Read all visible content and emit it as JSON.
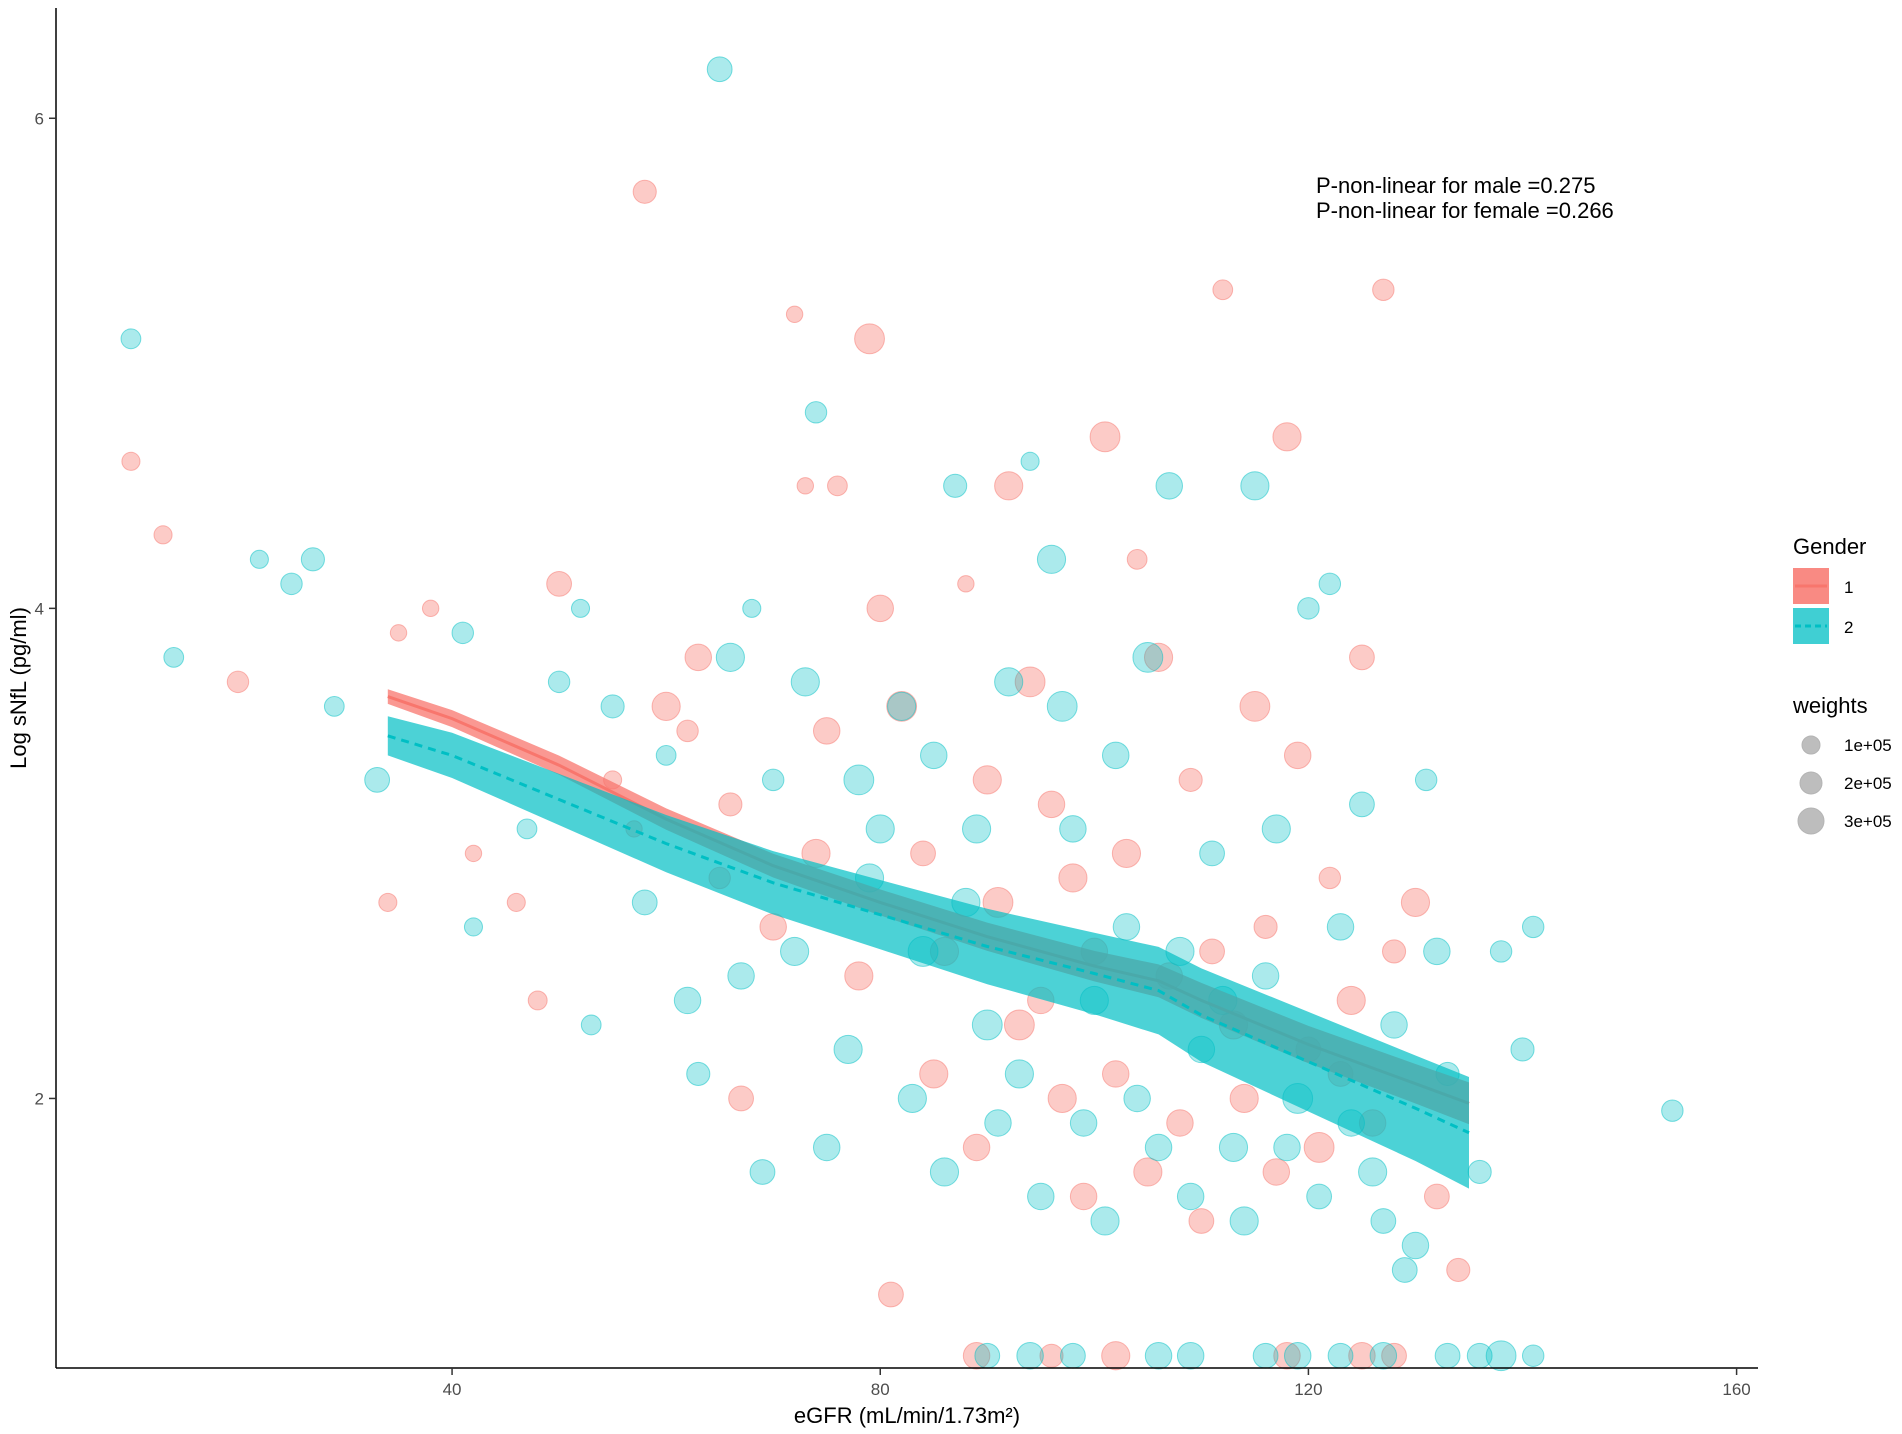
{
  "chart_data": {
    "type": "scatter",
    "title": "",
    "xlabel": "eGFR (mL/min/1.73m²)",
    "ylabel": "Log sNfL (pg/ml)",
    "xlim": [
      3,
      162
    ],
    "ylim": [
      0.9,
      6.45
    ],
    "x_ticks": [
      40,
      80,
      120,
      160
    ],
    "y_ticks": [
      2,
      4,
      6
    ],
    "grid": false,
    "annotations": [
      "P-non-linear for male =0.275",
      "P-non-linear for female =0.266"
    ],
    "legend": {
      "placement": "right",
      "color_title": "Gender",
      "color_entries": [
        {
          "label": "1",
          "color": "#F8766D"
        },
        {
          "label": "2",
          "color": "#00BFC4"
        }
      ],
      "size_title": "weights",
      "size_entries": [
        {
          "label": "1e+05",
          "value": 100000
        },
        {
          "label": "2e+05",
          "value": 200000
        },
        {
          "label": "3e+05",
          "value": 300000
        }
      ]
    },
    "series": [
      {
        "name": "1",
        "color": "#F8766D",
        "fit_x": [
          34,
          40,
          50,
          60,
          70,
          80,
          90,
          100,
          106,
          110,
          120,
          130,
          135
        ],
        "fit_y": [
          3.64,
          3.55,
          3.36,
          3.14,
          2.95,
          2.8,
          2.66,
          2.54,
          2.48,
          2.4,
          2.22,
          2.06,
          1.98
        ],
        "fit_band": 0.06,
        "points": [
          [
            10,
            4.6,
            1.2
          ],
          [
            13,
            4.3,
            1.2
          ],
          [
            20,
            3.7,
            1.6
          ],
          [
            34,
            2.8,
            1.2
          ],
          [
            35,
            3.9,
            1.0
          ],
          [
            38,
            4.0,
            1.0
          ],
          [
            42,
            3.0,
            1.0
          ],
          [
            46,
            2.8,
            1.2
          ],
          [
            48,
            2.4,
            1.3
          ],
          [
            50,
            4.1,
            2.0
          ],
          [
            55,
            3.3,
            1.2
          ],
          [
            57,
            3.1,
            1.0
          ],
          [
            58,
            5.7,
            1.8
          ],
          [
            60,
            3.6,
            2.4
          ],
          [
            62,
            3.5,
            1.6
          ],
          [
            63,
            3.8,
            2.2
          ],
          [
            65,
            2.9,
            1.6
          ],
          [
            67,
            2.0,
            2.0
          ],
          [
            72,
            5.2,
            1.0
          ],
          [
            73,
            4.5,
            1.0
          ],
          [
            75,
            3.5,
            2.2
          ],
          [
            76,
            4.5,
            1.4
          ],
          [
            79,
            5.1,
            2.6
          ],
          [
            80,
            4.0,
            2.2
          ],
          [
            81,
            1.2,
            2.0
          ],
          [
            84,
            3.0,
            2.0
          ],
          [
            86,
            2.6,
            2.4
          ],
          [
            88,
            4.1,
            1.0
          ],
          [
            90,
            3.3,
            2.4
          ],
          [
            92,
            4.5,
            2.4
          ],
          [
            94,
            3.7,
            2.6
          ],
          [
            96,
            3.2,
            2.2
          ],
          [
            98,
            2.9,
            2.4
          ],
          [
            100,
            2.6,
            2.2
          ],
          [
            101,
            4.7,
            2.6
          ],
          [
            103,
            3.0,
            2.4
          ],
          [
            104,
            4.2,
            1.4
          ],
          [
            106,
            3.8,
            2.4
          ],
          [
            107,
            2.5,
            2.2
          ],
          [
            109,
            3.3,
            1.8
          ],
          [
            111,
            2.6,
            2.0
          ],
          [
            112,
            5.3,
            1.4
          ],
          [
            113,
            2.3,
            2.4
          ],
          [
            115,
            3.6,
            2.6
          ],
          [
            116,
            2.7,
            1.8
          ],
          [
            118,
            4.7,
            2.4
          ],
          [
            119,
            3.4,
            2.2
          ],
          [
            120,
            2.2,
            2.0
          ],
          [
            121,
            1.8,
            2.6
          ],
          [
            122,
            2.9,
            1.6
          ],
          [
            124,
            2.4,
            2.4
          ],
          [
            125,
            3.8,
            2.0
          ],
          [
            126,
            1.9,
            2.2
          ],
          [
            127,
            5.3,
            1.6
          ],
          [
            128,
            2.6,
            1.8
          ],
          [
            130,
            2.8,
            2.4
          ],
          [
            132,
            1.6,
            2.0
          ],
          [
            134,
            1.3,
            1.8
          ],
          [
            70,
            2.7,
            2.2
          ],
          [
            78,
            2.5,
            2.4
          ],
          [
            85,
            2.1,
            2.4
          ],
          [
            89,
            1.8,
            2.2
          ],
          [
            93,
            2.3,
            2.6
          ],
          [
            97,
            2.0,
            2.4
          ],
          [
            99,
            1.6,
            2.2
          ],
          [
            102,
            2.1,
            2.2
          ],
          [
            105,
            1.7,
            2.4
          ],
          [
            108,
            1.9,
            2.2
          ],
          [
            110,
            1.5,
            2.0
          ],
          [
            114,
            2.0,
            2.4
          ],
          [
            117,
            1.7,
            2.2
          ],
          [
            123,
            2.1,
            2.0
          ],
          [
            66,
            3.2,
            1.8
          ],
          [
            74,
            3.0,
            2.4
          ],
          [
            82,
            3.6,
            2.6
          ],
          [
            91,
            2.8,
            2.6
          ],
          [
            95,
            2.4,
            2.2
          ],
          [
            89,
            0.95,
            2.2
          ],
          [
            96,
            0.95,
            1.8
          ],
          [
            102,
            0.95,
            2.4
          ],
          [
            118,
            0.95,
            2.2
          ],
          [
            125,
            0.95,
            2.2
          ],
          [
            128,
            0.95,
            2.0
          ]
        ]
      },
      {
        "name": "2",
        "color": "#00BFC4",
        "fit_x": [
          34,
          40,
          50,
          60,
          70,
          80,
          90,
          100,
          106,
          110,
          120,
          130,
          135
        ],
        "fit_y": [
          3.48,
          3.4,
          3.22,
          3.04,
          2.88,
          2.75,
          2.62,
          2.51,
          2.44,
          2.34,
          2.15,
          1.96,
          1.86
        ],
        "fit_band": 0.16,
        "points": [
          [
            10,
            5.1,
            1.4
          ],
          [
            14,
            3.8,
            1.4
          ],
          [
            22,
            4.2,
            1.2
          ],
          [
            25,
            4.1,
            1.6
          ],
          [
            27,
            4.2,
            1.8
          ],
          [
            29,
            3.6,
            1.4
          ],
          [
            33,
            3.3,
            2.0
          ],
          [
            41,
            3.9,
            1.6
          ],
          [
            42,
            2.7,
            1.2
          ],
          [
            47,
            3.1,
            1.4
          ],
          [
            50,
            3.7,
            1.6
          ],
          [
            52,
            4.0,
            1.2
          ],
          [
            53,
            2.3,
            1.4
          ],
          [
            55,
            3.6,
            1.8
          ],
          [
            60,
            3.4,
            1.4
          ],
          [
            62,
            2.4,
            2.2
          ],
          [
            63,
            2.1,
            1.8
          ],
          [
            65,
            6.2,
            2.0
          ],
          [
            66,
            3.8,
            2.4
          ],
          [
            68,
            4.0,
            1.2
          ],
          [
            69,
            1.7,
            2.0
          ],
          [
            70,
            3.3,
            1.6
          ],
          [
            73,
            3.7,
            2.4
          ],
          [
            74,
            4.8,
            1.6
          ],
          [
            75,
            1.8,
            2.2
          ],
          [
            78,
            3.3,
            2.6
          ],
          [
            80,
            3.1,
            2.4
          ],
          [
            82,
            3.6,
            2.4
          ],
          [
            85,
            3.4,
            2.2
          ],
          [
            87,
            4.5,
            1.8
          ],
          [
            88,
            2.8,
            2.4
          ],
          [
            90,
            2.3,
            2.6
          ],
          [
            92,
            3.7,
            2.4
          ],
          [
            94,
            4.6,
            1.2
          ],
          [
            96,
            4.2,
            2.4
          ],
          [
            97,
            3.6,
            2.6
          ],
          [
            98,
            3.1,
            2.2
          ],
          [
            100,
            2.4,
            2.4
          ],
          [
            102,
            3.4,
            2.2
          ],
          [
            104,
            2.0,
            2.2
          ],
          [
            105,
            3.8,
            2.6
          ],
          [
            107,
            4.5,
            2.2
          ],
          [
            108,
            2.6,
            2.4
          ],
          [
            110,
            2.2,
            2.2
          ],
          [
            111,
            3.0,
            2.0
          ],
          [
            113,
            1.8,
            2.4
          ],
          [
            115,
            4.5,
            2.4
          ],
          [
            116,
            2.5,
            2.2
          ],
          [
            117,
            3.1,
            2.4
          ],
          [
            119,
            2.0,
            2.6
          ],
          [
            120,
            4.0,
            1.6
          ],
          [
            122,
            4.1,
            1.6
          ],
          [
            123,
            2.7,
            2.2
          ],
          [
            125,
            3.2,
            2.0
          ],
          [
            126,
            1.7,
            2.4
          ],
          [
            128,
            2.3,
            2.2
          ],
          [
            130,
            1.4,
            2.2
          ],
          [
            131,
            3.3,
            1.6
          ],
          [
            132,
            2.6,
            2.2
          ],
          [
            133,
            2.1,
            1.8
          ],
          [
            136,
            1.7,
            1.8
          ],
          [
            138,
            2.6,
            1.6
          ],
          [
            140,
            2.2,
            1.8
          ],
          [
            141,
            2.7,
            1.6
          ],
          [
            154,
            1.95,
            1.6
          ],
          [
            72,
            2.6,
            2.4
          ],
          [
            77,
            2.2,
            2.4
          ],
          [
            83,
            2.0,
            2.4
          ],
          [
            86,
            1.7,
            2.4
          ],
          [
            91,
            1.9,
            2.2
          ],
          [
            93,
            2.1,
            2.4
          ],
          [
            95,
            1.6,
            2.2
          ],
          [
            99,
            1.9,
            2.2
          ],
          [
            101,
            1.5,
            2.4
          ],
          [
            103,
            2.7,
            2.2
          ],
          [
            106,
            1.8,
            2.2
          ],
          [
            109,
            1.6,
            2.2
          ],
          [
            112,
            2.4,
            2.4
          ],
          [
            114,
            1.5,
            2.4
          ],
          [
            118,
            1.8,
            2.2
          ],
          [
            121,
            1.6,
            2.0
          ],
          [
            124,
            1.9,
            2.2
          ],
          [
            127,
            1.5,
            2.0
          ],
          [
            129,
            1.3,
            2.0
          ],
          [
            58,
            2.8,
            2.0
          ],
          [
            67,
            2.5,
            2.2
          ],
          [
            79,
            2.9,
            2.4
          ],
          [
            84,
            2.6,
            2.6
          ],
          [
            89,
            3.1,
            2.4
          ],
          [
            90,
            0.95,
            2.0
          ],
          [
            94,
            0.95,
            2.2
          ],
          [
            98,
            0.95,
            2.0
          ],
          [
            106,
            0.95,
            2.2
          ],
          [
            109,
            0.95,
            2.2
          ],
          [
            116,
            0.95,
            2.0
          ],
          [
            119,
            0.95,
            2.2
          ],
          [
            123,
            0.95,
            2.0
          ],
          [
            127,
            0.95,
            2.2
          ],
          [
            133,
            0.95,
            2.0
          ],
          [
            136,
            0.95,
            2.0
          ],
          [
            138,
            0.95,
            2.6
          ],
          [
            141,
            0.95,
            1.6
          ]
        ]
      }
    ]
  }
}
